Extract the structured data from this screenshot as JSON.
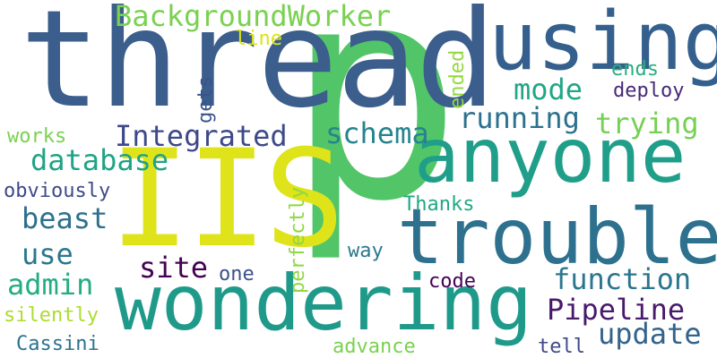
{
  "words": {
    "thread": "thread",
    "p": "p",
    "iis": "IIS",
    "using": "using",
    "anyone": "anyone",
    "trouble": "trouble",
    "wondering": "wondering",
    "bgworker": "BackgroundWorker",
    "line": "line",
    "mode": "mode",
    "running": "running",
    "trying": "trying",
    "ends": "ends",
    "deploy": "deploy",
    "integrated": "Integrated",
    "schema": "schema",
    "database": "database",
    "works": "works",
    "obviously": "obviously",
    "beast": "beast",
    "use": "use",
    "admin": "admin",
    "silently": "silently",
    "cassini": "Cassini",
    "site": "site",
    "one": "one",
    "thanks": "Thanks",
    "way": "way",
    "function": "function",
    "pipeline": "Pipeline",
    "update": "update",
    "code": "code",
    "tell": "tell",
    "advance": "advance",
    "ended": "ended",
    "gets": "gets",
    "perfectly": "perfectly"
  }
}
